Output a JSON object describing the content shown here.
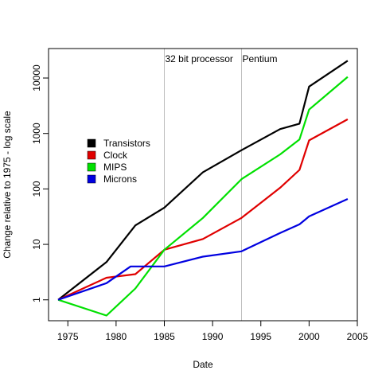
{
  "chart_data": {
    "type": "line",
    "title": "",
    "xlabel": "Date",
    "ylabel": "Change relative to 1975 - log scale",
    "y_scale": "log",
    "xlim": [
      1973,
      2005
    ],
    "ylim": [
      0.42,
      34000
    ],
    "x_ticks": [
      1975,
      1980,
      1985,
      1990,
      1995,
      2000,
      2005
    ],
    "y_ticks": [
      {
        "value": 1,
        "label": "1"
      },
      {
        "value": 10,
        "label": "10"
      },
      {
        "value": 100,
        "label": "100"
      },
      {
        "value": 1000,
        "label": "1000"
      },
      {
        "value": 10000,
        "label": "10000"
      }
    ],
    "grid": false,
    "legend_position": "left-center",
    "annotations": [
      {
        "x": 1985,
        "label": "32 bit processor",
        "line_color": "#bebebe"
      },
      {
        "x": 1993,
        "label": "Pentium",
        "line_color": "#bebebe"
      }
    ],
    "series": [
      {
        "name": "Transistors",
        "color": "#000000",
        "points": [
          [
            1974,
            1
          ],
          [
            1979,
            4.8
          ],
          [
            1982,
            22
          ],
          [
            1985,
            46
          ],
          [
            1989,
            200
          ],
          [
            1993,
            500
          ],
          [
            1997,
            1200
          ],
          [
            1999,
            1500
          ],
          [
            2000,
            7000
          ],
          [
            2004,
            20500
          ]
        ]
      },
      {
        "name": "Clock",
        "color": "#e00000",
        "points": [
          [
            1974,
            1
          ],
          [
            1979,
            2.5
          ],
          [
            1982,
            2.9
          ],
          [
            1985,
            8
          ],
          [
            1989,
            12.5
          ],
          [
            1993,
            30
          ],
          [
            1997,
            105
          ],
          [
            1999,
            220
          ],
          [
            2000,
            750
          ],
          [
            2004,
            1800
          ]
        ]
      },
      {
        "name": "MIPS",
        "color": "#00e000",
        "points": [
          [
            1974,
            1
          ],
          [
            1979,
            0.52
          ],
          [
            1982,
            1.6
          ],
          [
            1985,
            8
          ],
          [
            1989,
            30
          ],
          [
            1993,
            150
          ],
          [
            1997,
            420
          ],
          [
            1999,
            780
          ],
          [
            2000,
            2700
          ],
          [
            2004,
            10500
          ]
        ]
      },
      {
        "name": "Microns",
        "color": "#0000e0",
        "points": [
          [
            1974,
            1
          ],
          [
            1979,
            2
          ],
          [
            1981.5,
            4
          ],
          [
            1985,
            4
          ],
          [
            1989,
            6
          ],
          [
            1993,
            7.5
          ],
          [
            1997,
            16
          ],
          [
            1999,
            23
          ],
          [
            2000,
            32
          ],
          [
            2004,
            66
          ]
        ]
      }
    ]
  }
}
